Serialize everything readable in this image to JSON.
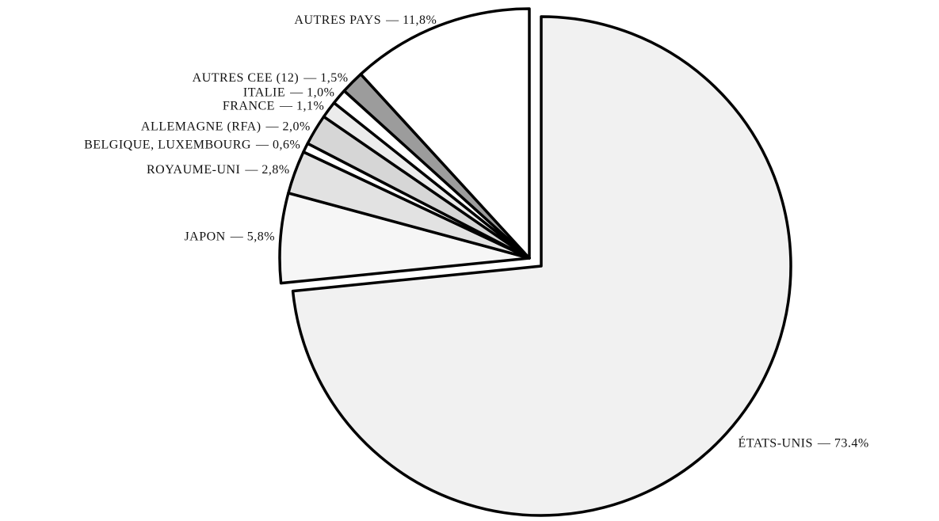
{
  "chart_data": {
    "type": "pie",
    "categories": [
      "ÉTATS-UNIS",
      "JAPON",
      "ROYAUME-UNI",
      "BELGIQUE, LUXEMBOURG",
      "ALLEMAGNE (RFA)",
      "FRANCE",
      "ITALIE",
      "AUTRES CEE (12)",
      "AUTRES PAYS"
    ],
    "values": [
      73.4,
      5.8,
      2.8,
      0.6,
      2.0,
      1.1,
      1.0,
      1.5,
      11.8
    ],
    "value_labels": [
      "— 73.4%",
      "— 5,8%",
      "— 2,8%",
      "— 0,6%",
      "— 2,0%",
      "— 1,1%",
      "— 1,0%",
      "— 1,5%",
      "— 11,8%"
    ],
    "colors": [
      "#f1f1f1",
      "#f6f6f6",
      "#e2e2e2",
      "#ffffff",
      "#d6d6d6",
      "#ececec",
      "#ffffff",
      "#9c9c9c",
      "#ffffff"
    ]
  }
}
